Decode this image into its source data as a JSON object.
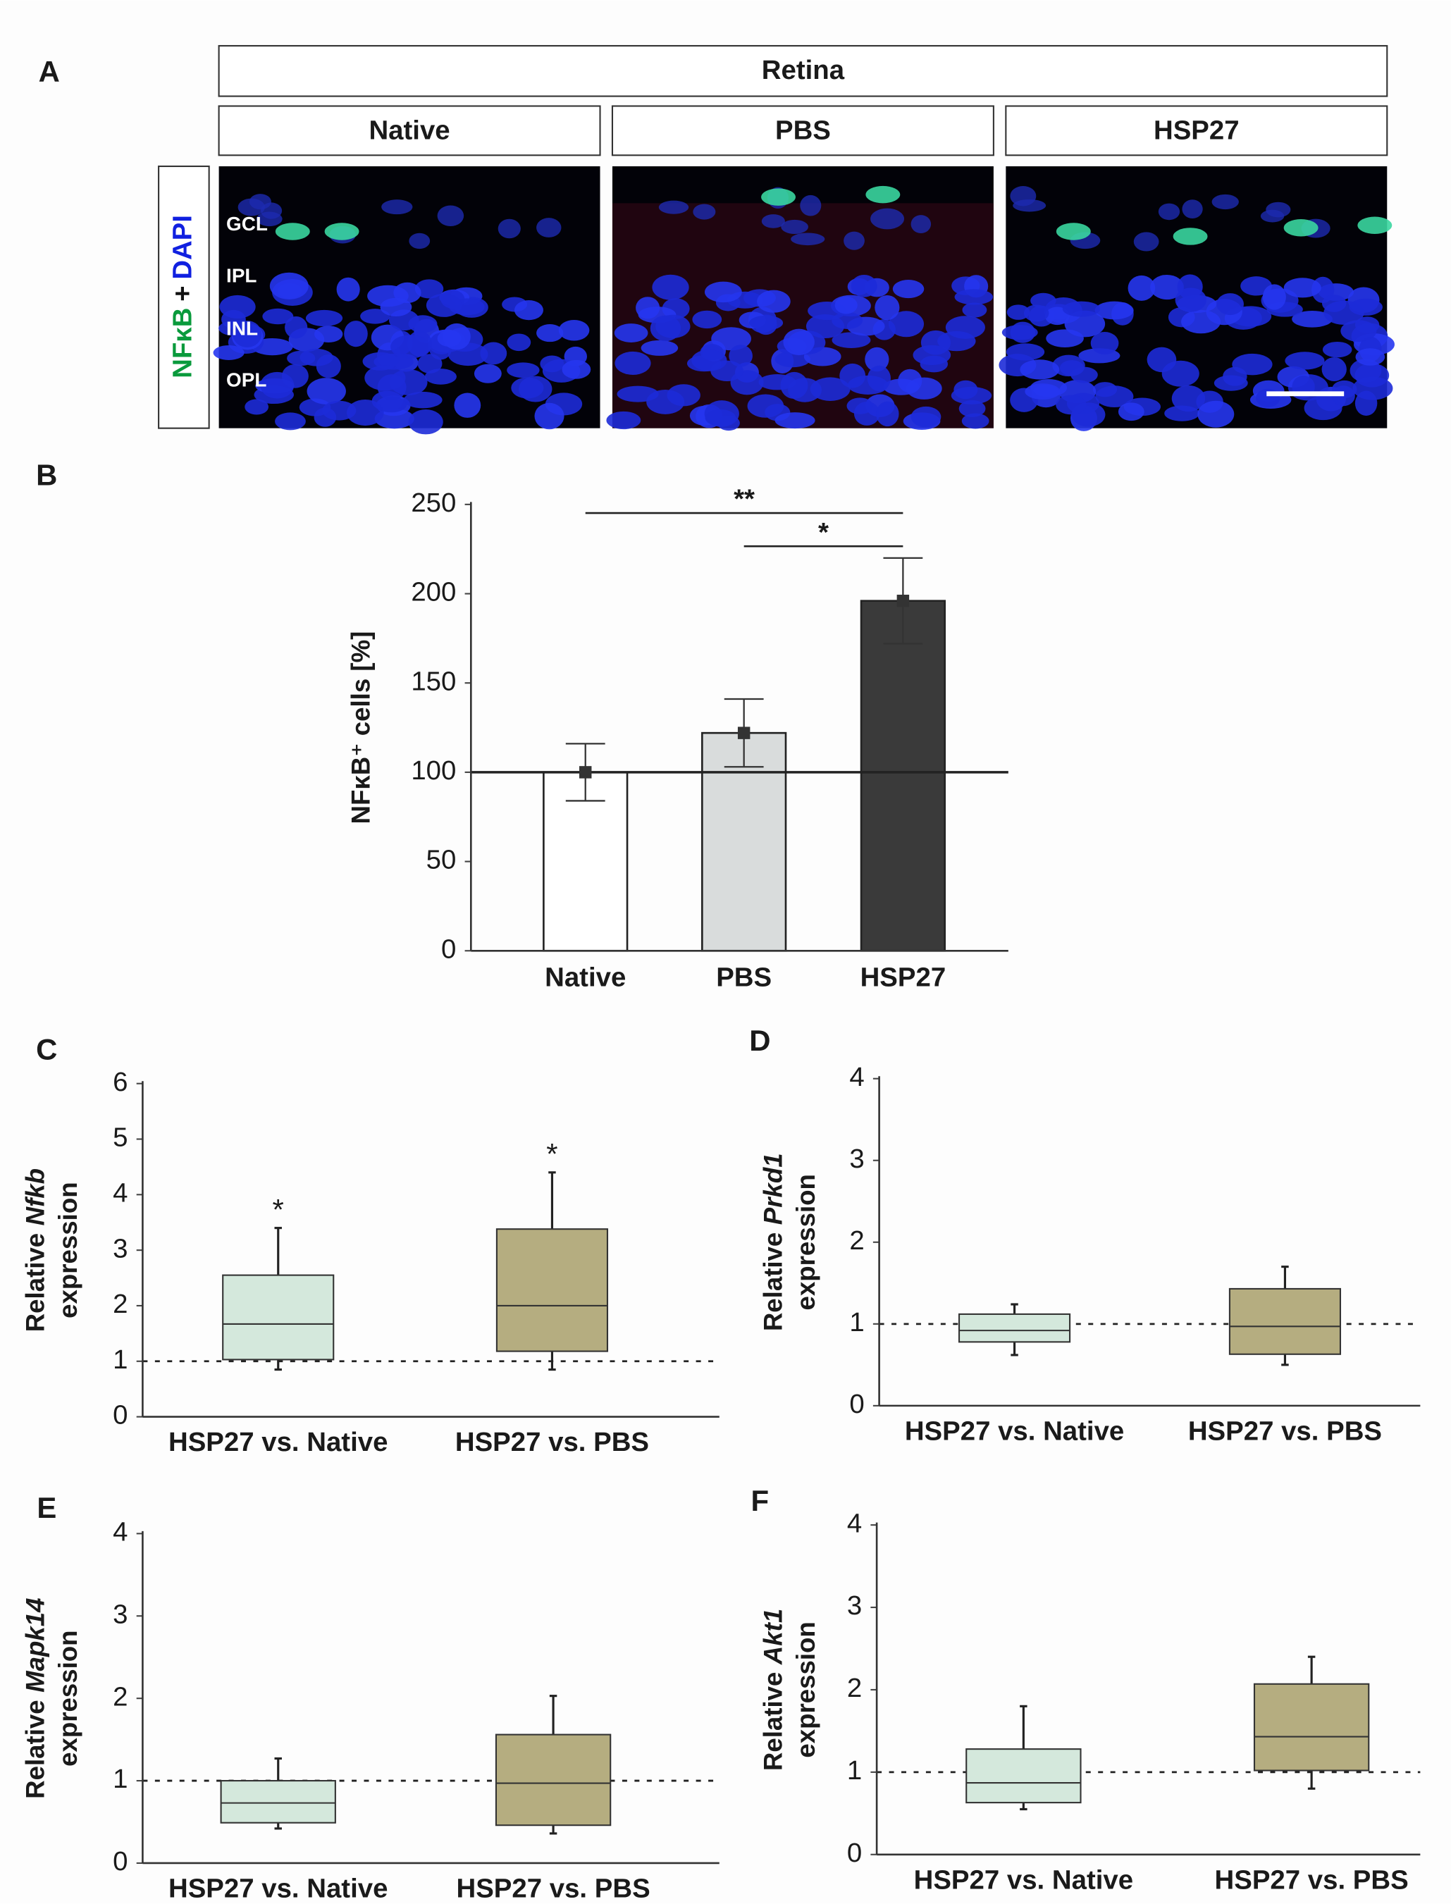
{
  "panel_a": {
    "label": "A",
    "title": "Retina",
    "columns": [
      "Native",
      "PBS",
      "HSP27"
    ],
    "stain": [
      "NFκB",
      "+",
      "DAPI"
    ],
    "layers": [
      "GCL",
      "IPL",
      "INL",
      "OPL"
    ]
  },
  "chart_data": [
    {
      "type": "bar",
      "label": "B",
      "y_label": "NFκB⁺ cells [%]",
      "categories": [
        "Native",
        "PBS",
        "HSP27"
      ],
      "values": [
        100,
        122,
        196
      ],
      "errors": [
        16,
        19,
        24
      ],
      "colors": [
        "#ffffff",
        "#d9dcdc",
        "#3a3a3a"
      ],
      "reference_line": 100,
      "ylim": [
        0,
        250
      ],
      "yticks": [
        0,
        50,
        100,
        150,
        200,
        250
      ],
      "significance": [
        {
          "from": 0,
          "to": 2,
          "label": "**"
        },
        {
          "from": 1,
          "to": 2,
          "label": "*"
        }
      ]
    },
    {
      "type": "box",
      "label": "C",
      "y_label": [
        "Relative",
        "Nfkb",
        "expression"
      ],
      "categories": [
        "HSP27 vs. Native",
        "HSP27 vs. PBS"
      ],
      "stats": [
        {
          "min": 0.85,
          "q1": 1.03,
          "median": 1.67,
          "q3": 2.55,
          "max": 3.4
        },
        {
          "min": 0.85,
          "q1": 1.18,
          "median": 2.0,
          "q3": 3.38,
          "max": 4.4
        }
      ],
      "colors": [
        "#d4e8dc",
        "#b5ad80"
      ],
      "reference_line": 1,
      "significance_labels": [
        "*",
        "*"
      ],
      "ylim": [
        0,
        6
      ],
      "yticks": [
        0,
        1,
        2,
        3,
        4,
        5,
        6
      ]
    },
    {
      "type": "box",
      "label": "D",
      "y_label": [
        "Relative",
        "Prkd1",
        "expression"
      ],
      "categories": [
        "HSP27 vs. Native",
        "HSP27 vs. PBS"
      ],
      "stats": [
        {
          "min": 0.62,
          "q1": 0.78,
          "median": 0.92,
          "q3": 1.12,
          "max": 1.24
        },
        {
          "min": 0.5,
          "q1": 0.63,
          "median": 0.97,
          "q3": 1.43,
          "max": 1.7
        }
      ],
      "colors": [
        "#d4e8dc",
        "#b5ad80"
      ],
      "reference_line": 1,
      "ylim": [
        0,
        4
      ],
      "yticks": [
        0,
        1,
        2,
        3,
        4
      ]
    },
    {
      "type": "box",
      "label": "E",
      "y_label": [
        "Relative",
        "Mapk14",
        "expression"
      ],
      "categories": [
        "HSP27 vs. Native",
        "HSP27 vs. PBS"
      ],
      "stats": [
        {
          "min": 0.42,
          "q1": 0.49,
          "median": 0.73,
          "q3": 1.0,
          "max": 1.27
        },
        {
          "min": 0.36,
          "q1": 0.46,
          "median": 0.97,
          "q3": 1.56,
          "max": 2.03
        }
      ],
      "colors": [
        "#d4e8dc",
        "#b5ad80"
      ],
      "reference_line": 1,
      "ylim": [
        0,
        4
      ],
      "yticks": [
        0,
        1,
        2,
        3,
        4
      ]
    },
    {
      "type": "box",
      "label": "F",
      "y_label": [
        "Relative",
        "Akt1",
        "expression"
      ],
      "categories": [
        "HSP27 vs. Native",
        "HSP27 vs. PBS"
      ],
      "stats": [
        {
          "min": 0.55,
          "q1": 0.63,
          "median": 0.87,
          "q3": 1.28,
          "max": 1.8
        },
        {
          "min": 0.8,
          "q1": 1.02,
          "median": 1.43,
          "q3": 2.07,
          "max": 2.4
        }
      ],
      "colors": [
        "#d4e8dc",
        "#b5ad80"
      ],
      "reference_line": 1,
      "ylim": [
        0,
        4
      ],
      "yticks": [
        0,
        1,
        2,
        3,
        4
      ]
    }
  ]
}
